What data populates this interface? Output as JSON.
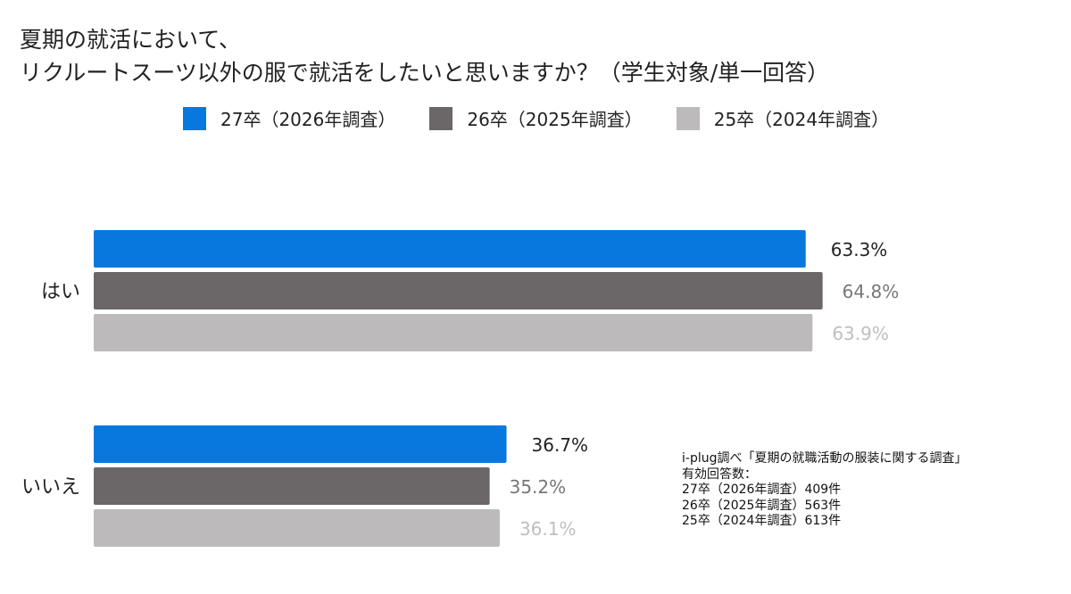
{
  "title": {
    "line1": "夏期の就活において、",
    "line2": "リクルートスーツ以外の服で就活をしたいと思いますか？（学生対象/単一回答）"
  },
  "colors": {
    "s2027": "#0878de",
    "s2026": "#6b6768",
    "s2025": "#bcbabb",
    "label_2027": "#222222",
    "label_2026": "#77777a",
    "label_2025": "#c0bec0"
  },
  "chart_data": {
    "type": "bar",
    "orientation": "horizontal",
    "categories": [
      "はい",
      "いいえ"
    ],
    "unit": "%",
    "xlim": [
      0,
      70
    ],
    "grid": false,
    "legend_position": "top",
    "series": [
      {
        "name": "27卒（2026年調査）",
        "values": [
          63.3,
          36.7
        ],
        "labels": [
          "63.3%",
          "36.7%"
        ]
      },
      {
        "name": "26卒（2025年調査）",
        "values": [
          64.8,
          35.2
        ],
        "labels": [
          "64.8%",
          "35.2%"
        ]
      },
      {
        "name": "25卒（2024年調査）",
        "values": [
          63.9,
          36.1
        ],
        "labels": [
          "63.9%",
          "36.1%"
        ]
      }
    ]
  },
  "note": {
    "source": "i-plug調べ「夏期の就職活動の服装に関する調査」",
    "respondents_label": "有効回答数：",
    "lines": [
      "27卒（2026年調査）409件",
      "26卒（2025年調査）563件",
      "25卒（2024年調査）613件"
    ]
  }
}
